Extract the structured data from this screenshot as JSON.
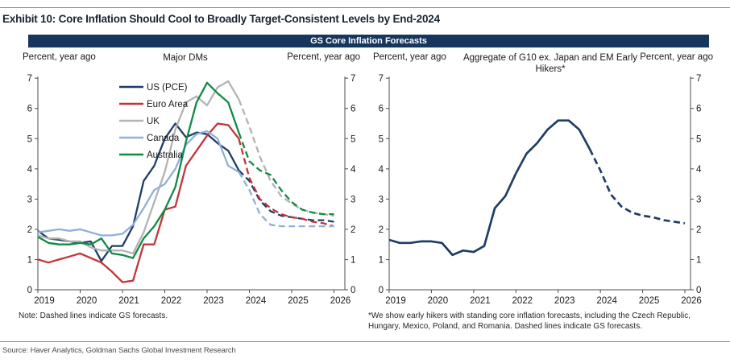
{
  "page": {
    "exhibit_title": "Exhibit 10: Core Inflation Should Cool to Broadly Target-Consistent Levels by End-2024",
    "banner_title": "GS Core Inflation Forecasts",
    "source_line": "Source: Haver Analytics, Goldman Sachs Global Investment Research"
  },
  "colors": {
    "banner_bg": "#17365d",
    "banner_text": "#ffffff",
    "axis": "#4d4d4d",
    "rule": "#8c8c8c"
  },
  "chart_data": [
    {
      "type": "line",
      "panel": "left",
      "title": "Major DMs",
      "ylabel_left": "Percent, year ago",
      "ylabel_right": "Percent, year ago",
      "x_tick_labels": [
        "2019",
        "2020",
        "2021",
        "2022",
        "2023",
        "2024",
        "2025",
        "2026"
      ],
      "x_frequency": "quarterly",
      "x_range": [
        "2019Q1",
        "2026Q1"
      ],
      "ylim": [
        0,
        7
      ],
      "y_ticks": [
        0,
        1,
        2,
        3,
        4,
        5,
        6,
        7
      ],
      "grid": false,
      "legend_position": "upper-left",
      "forecast_start_index": 19,
      "note": "Note: Dashed lines indicate GS forecasts.",
      "series": [
        {
          "name": "US (PCE)",
          "color": "#1f3d66",
          "values": [
            1.95,
            1.7,
            1.65,
            1.6,
            1.55,
            1.6,
            0.95,
            1.45,
            1.45,
            2.1,
            3.6,
            4.1,
            5.0,
            5.5,
            5.05,
            5.2,
            5.15,
            4.85,
            4.6,
            3.95,
            3.6,
            2.95,
            2.6,
            2.45,
            2.4,
            2.35,
            2.3,
            2.3,
            2.25
          ]
        },
        {
          "name": "Euro Area",
          "color": "#c23439",
          "values": [
            1.0,
            0.9,
            1.0,
            1.1,
            1.2,
            1.05,
            0.9,
            0.6,
            0.25,
            0.3,
            1.5,
            1.5,
            2.65,
            2.75,
            4.1,
            4.6,
            5.1,
            5.5,
            5.45,
            5.0,
            3.7,
            3.0,
            2.7,
            2.5,
            2.4,
            2.35,
            2.25,
            2.2,
            2.1
          ]
        },
        {
          "name": "UK",
          "color": "#b3b3b3",
          "values": [
            1.8,
            1.7,
            1.7,
            1.6,
            1.6,
            1.4,
            1.3,
            1.3,
            1.3,
            1.2,
            1.9,
            2.9,
            3.9,
            5.3,
            6.2,
            6.4,
            6.1,
            6.7,
            6.9,
            6.3,
            5.4,
            4.4,
            3.6,
            3.1,
            2.85,
            2.65,
            2.55,
            2.5,
            2.45
          ]
        },
        {
          "name": "Canada",
          "color": "#8fb0d7",
          "values": [
            1.9,
            1.95,
            2.0,
            1.95,
            2.0,
            1.9,
            1.8,
            1.8,
            1.85,
            2.15,
            2.7,
            3.3,
            3.5,
            4.0,
            4.8,
            5.15,
            5.25,
            5.0,
            4.1,
            3.9,
            3.3,
            2.5,
            2.15,
            2.1,
            2.1,
            2.1,
            2.1,
            2.1,
            2.1
          ]
        },
        {
          "name": "Australia",
          "color": "#0f8b45",
          "values": [
            1.75,
            1.55,
            1.5,
            1.5,
            1.55,
            1.5,
            1.7,
            1.2,
            1.15,
            1.05,
            1.7,
            2.1,
            2.65,
            3.4,
            4.9,
            6.2,
            6.85,
            6.5,
            6.2,
            5.2,
            4.25,
            3.95,
            3.8,
            3.3,
            2.9,
            2.65,
            2.55,
            2.5,
            2.5
          ]
        }
      ]
    },
    {
      "type": "line",
      "panel": "right",
      "title": "Aggregate of G10 ex. Japan and EM Early Hikers*",
      "ylabel_left": "Percent, year ago",
      "ylabel_right": "Percent, year ago",
      "x_tick_labels": [
        "2019",
        "2020",
        "2021",
        "2022",
        "2023",
        "2024",
        "2025",
        "2026"
      ],
      "x_frequency": "quarterly",
      "x_range": [
        "2019Q1",
        "2026Q1"
      ],
      "ylim": [
        0,
        7
      ],
      "y_ticks": [
        0,
        1,
        2,
        3,
        4,
        5,
        6,
        7
      ],
      "grid": false,
      "legend_position": "none",
      "forecast_start_index": 19,
      "footnote": "*We show early hikers with standing core inflation forecasts, including the Czech Republic, Hungary, Mexico, Poland, and Romania. Dashed lines indicate GS forecasts.",
      "series": [
        {
          "name": "Aggregate of G10 ex. Japan and EM Early Hikers",
          "color": "#1f3d66",
          "values": [
            1.65,
            1.55,
            1.55,
            1.6,
            1.6,
            1.55,
            1.15,
            1.3,
            1.25,
            1.45,
            2.7,
            3.1,
            3.85,
            4.5,
            4.85,
            5.3,
            5.6,
            5.6,
            5.3,
            4.65,
            3.95,
            3.15,
            2.75,
            2.55,
            2.45,
            2.4,
            2.3,
            2.25,
            2.2
          ]
        }
      ]
    }
  ]
}
